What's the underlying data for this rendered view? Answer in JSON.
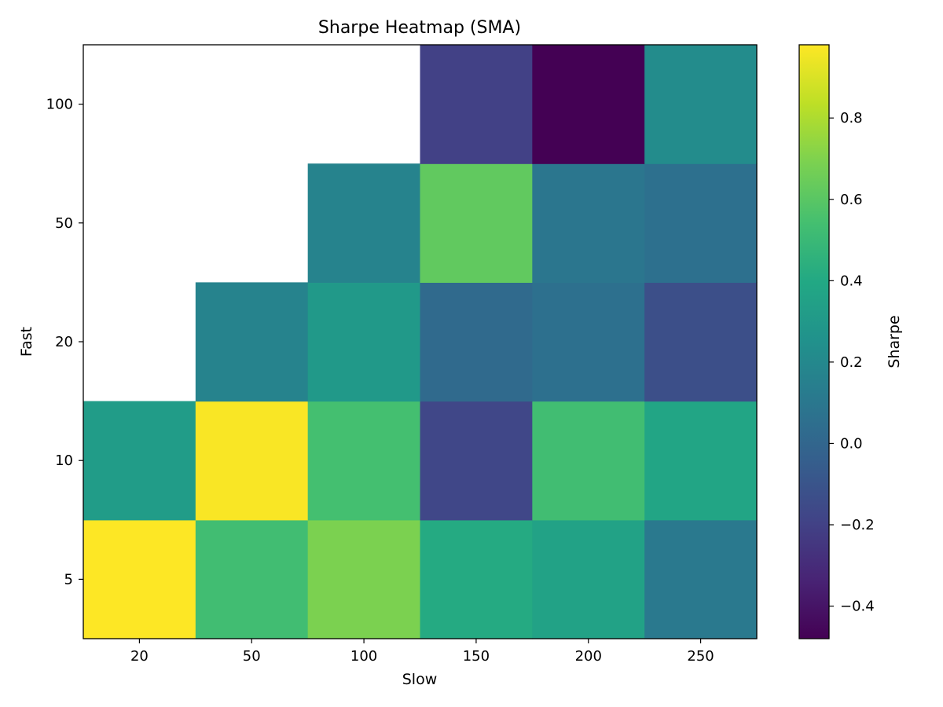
{
  "chart_data": {
    "type": "heatmap",
    "title": "Sharpe Heatmap (SMA)",
    "xlabel": "Slow",
    "ylabel": "Fast",
    "x_categories": [
      "20",
      "50",
      "100",
      "150",
      "200",
      "250"
    ],
    "y_categories": [
      "5",
      "10",
      "20",
      "50",
      "100"
    ],
    "values": [
      [
        0.98,
        0.53,
        0.69,
        0.41,
        0.36,
        0.11
      ],
      [
        0.32,
        0.97,
        0.54,
        -0.17,
        0.53,
        0.38
      ],
      [
        null,
        0.17,
        0.3,
        0.02,
        0.06,
        -0.13
      ],
      [
        null,
        null,
        0.17,
        0.62,
        0.09,
        0.06
      ],
      [
        null,
        null,
        null,
        -0.2,
        -0.48,
        0.22
      ]
    ],
    "colormap": "viridis",
    "color_range": [
      -0.48,
      0.98
    ],
    "colorbar": {
      "label": "Sharpe",
      "ticks": [
        -0.4,
        -0.2,
        0.0,
        0.2,
        0.4,
        0.6,
        0.8
      ],
      "tick_labels": [
        "−0.4",
        "−0.2",
        "0.0",
        "0.2",
        "0.4",
        "0.6",
        "0.8"
      ]
    },
    "grid": false
  }
}
